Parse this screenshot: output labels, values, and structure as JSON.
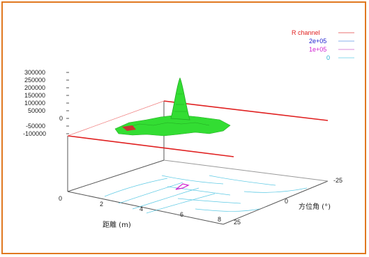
{
  "chart_data": {
    "type": "surface",
    "title": "",
    "xlabel": "距離 (m)",
    "ylabel": "方位角 (°)",
    "zlabel": "",
    "xlim": [
      0,
      8
    ],
    "ylim": [
      -25,
      25
    ],
    "zlim": [
      -100000,
      300000
    ],
    "x_ticks": [
      "0",
      "2",
      "4",
      "6",
      "8"
    ],
    "y_ticks": [
      "-25",
      "0",
      "25"
    ],
    "z_ticks": [
      "300000",
      "250000",
      "200000",
      "150000",
      "100000",
      "50000",
      "0",
      "-50000",
      "-100000"
    ],
    "legend_position": "top-right",
    "series": [
      {
        "name": "R channel",
        "color": "#e02020",
        "kind": "surface"
      },
      {
        "name": "2e+05",
        "color": "#2020d0",
        "kind": "contour-level",
        "value": 200000
      },
      {
        "name": "1e+05",
        "color": "#d020d0",
        "kind": "contour-level",
        "value": 100000
      },
      {
        "name": "0",
        "color": "#20b0d0",
        "kind": "contour-level",
        "value": 0
      }
    ],
    "surface_peak": {
      "x": 4.5,
      "y": 0,
      "z": 270000
    },
    "colors": {
      "surface": "#33dd33",
      "surface_dark": "#22aa22",
      "base_edges": "#e02020",
      "contour": "#40c0e0",
      "frame": "#e07820"
    }
  }
}
